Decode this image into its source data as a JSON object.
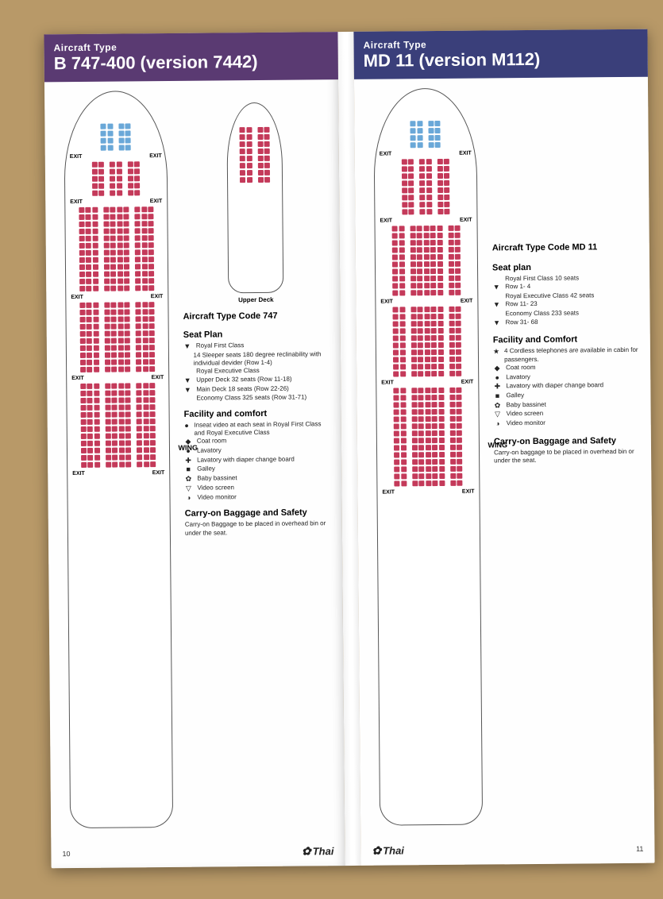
{
  "colors": {
    "header_747": "#5a3a72",
    "header_md11": "#3a3f7a",
    "first_class": "#6aa8d8",
    "exec_class": "#c43a5a",
    "econ_class": "#c43a5a",
    "seat_border": "#555555",
    "page_bg": "#fefefe",
    "wood_bg": "#b89968"
  },
  "pages": {
    "left": {
      "header_pre": "Aircraft Type",
      "header_title": "B 747-400 (version 7442)",
      "page_number": "10",
      "upper_deck_caption": "Upper Deck",
      "wing_label": "WING",
      "info": {
        "code_title": "Aircraft Type Code 747",
        "seatplan_title": "Seat Plan",
        "seatplan_items": [
          {
            "sym": "▼",
            "text": "Royal First Class"
          },
          {
            "sym": "",
            "text": "14 Sleeper seats 180 degree reclinability with individual devider (Row 1-4)"
          },
          {
            "sym": "",
            "text": "Royal Executive Class"
          },
          {
            "sym": "▼",
            "text": "Upper Deck  32 seats (Row 11-18)"
          },
          {
            "sym": "▼",
            "text": "Main Deck  18 seats (Row 22-26)"
          },
          {
            "sym": "",
            "text": "Economy Class 325 seats (Row 31-71)"
          }
        ],
        "facility_title": "Facility and comfort",
        "facility_items": [
          {
            "sym": "●",
            "text": "Inseat video at each seat in Royal First Class and Royal Executive Class"
          },
          {
            "sym": "◆",
            "text": "Coat room"
          },
          {
            "sym": "●",
            "text": "Lavatory"
          },
          {
            "sym": "✚",
            "text": "Lavatory with diaper change board"
          },
          {
            "sym": "■",
            "text": "Galley"
          },
          {
            "sym": "✿",
            "text": "Baby bassinet"
          },
          {
            "sym": "▽",
            "text": "Video screen"
          },
          {
            "sym": "◑",
            "text": "Video monitor"
          }
        ],
        "carry_title": "Carry-on Baggage and Safety",
        "carry_text": "Carry-on Baggage to be placed in overhead bin or under the seat."
      },
      "seatmap": {
        "first_rows": 4,
        "first_layout": [
          2,
          0,
          2
        ],
        "exec_rows": 5,
        "exec_layout": [
          2,
          1,
          2,
          1,
          2
        ],
        "econ_blocks": [
          {
            "rows": 12,
            "layout": [
              3,
              1,
              4,
              1,
              3
            ]
          },
          {
            "rows": 10,
            "layout": [
              3,
              1,
              4,
              1,
              3
            ]
          },
          {
            "rows": 12,
            "layout": [
              3,
              1,
              4,
              1,
              3
            ]
          }
        ],
        "upper_rows": 8,
        "upper_layout": [
          2,
          1,
          2
        ]
      }
    },
    "right": {
      "header_pre": "Aircraft Type",
      "header_title": "MD 11 (version M112)",
      "page_number": "11",
      "wing_label": "WING",
      "info": {
        "code_title": "Aircraft Type Code MD 11",
        "seatplan_title": "Seat plan",
        "seatplan_items": [
          {
            "sym": "",
            "text": "Royal First Class        10  seats"
          },
          {
            "sym": "▼",
            "text": "Row 1- 4"
          },
          {
            "sym": "",
            "text": "Royal Executive Class  42  seats"
          },
          {
            "sym": "▼",
            "text": "Row 11- 23"
          },
          {
            "sym": "",
            "text": "Economy Class          233  seats"
          },
          {
            "sym": "▼",
            "text": "Row 31- 68"
          }
        ],
        "facility_title": "Facility and Comfort",
        "facility_items": [
          {
            "sym": "★",
            "text": "4 Cordless telephones are available in cabin for passengers."
          },
          {
            "sym": "◆",
            "text": "Coat room"
          },
          {
            "sym": "●",
            "text": "Lavatory"
          },
          {
            "sym": "✚",
            "text": "Lavatory with diaper change board"
          },
          {
            "sym": "■",
            "text": "Galley"
          },
          {
            "sym": "✿",
            "text": "Baby bassinet"
          },
          {
            "sym": "▽",
            "text": "Video screen"
          },
          {
            "sym": "◑",
            "text": "Video monitor"
          }
        ],
        "carry_title": "Carry-on Baggage and Safety",
        "carry_text": "Carry-on baggage to be placed in overhead bin or under the seat."
      },
      "seatmap": {
        "first_rows": 4,
        "first_layout": [
          2,
          0,
          2
        ],
        "exec_rows": 8,
        "exec_layout": [
          2,
          1,
          2,
          1,
          2
        ],
        "econ_blocks": [
          {
            "rows": 10,
            "layout": [
              2,
              1,
              5,
              1,
              2
            ]
          },
          {
            "rows": 10,
            "layout": [
              2,
              1,
              5,
              1,
              2
            ]
          },
          {
            "rows": 14,
            "layout": [
              2,
              1,
              5,
              1,
              2
            ]
          }
        ]
      }
    },
    "brand": "Thai",
    "exit_label": "EXIT"
  }
}
